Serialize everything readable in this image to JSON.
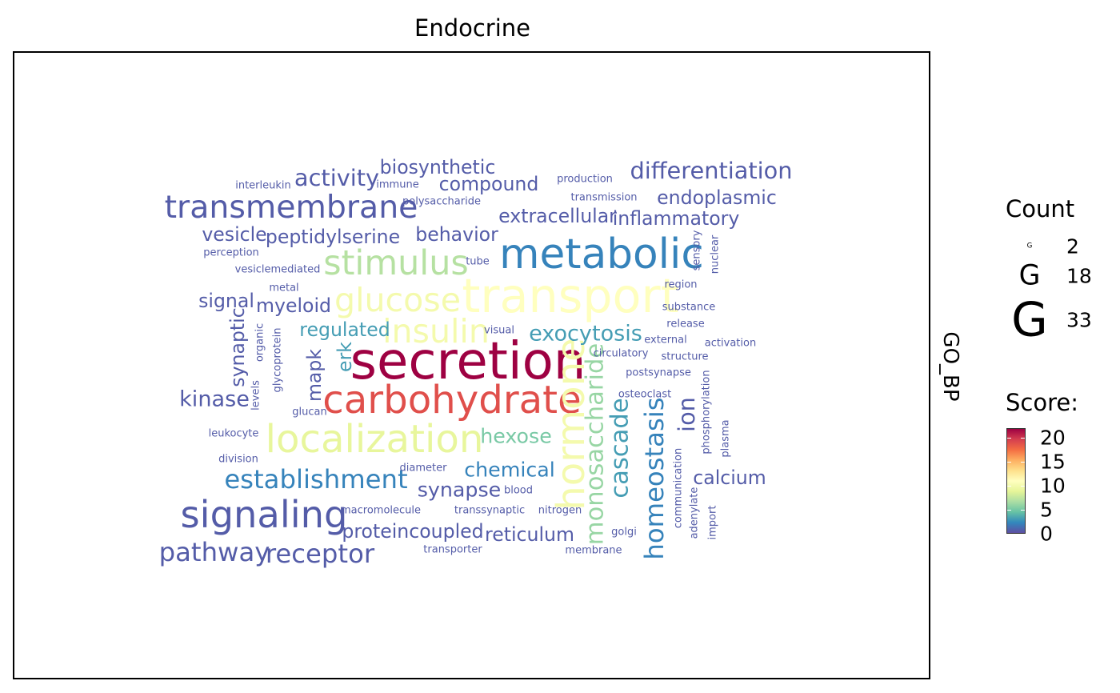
{
  "title": "Endocrine",
  "strip_label": "GO_BP",
  "legend": {
    "count_title": "Count",
    "count_glyph": "G",
    "count_keys": [
      {
        "value": 2,
        "label": "2"
      },
      {
        "value": 18,
        "label": "18"
      },
      {
        "value": 33,
        "label": "33"
      }
    ],
    "score_title": "Score:",
    "score_ticks": [
      {
        "value": 0,
        "label": "0"
      },
      {
        "value": 5,
        "label": "5"
      },
      {
        "value": 10,
        "label": "10"
      },
      {
        "value": 15,
        "label": "15"
      },
      {
        "value": 20,
        "label": "20"
      }
    ],
    "score_range": [
      0,
      22
    ],
    "palette": [
      "#5e4fa2",
      "#3288bd",
      "#66c2a5",
      "#abdda4",
      "#e6f598",
      "#ffffbf",
      "#fee08b",
      "#fdae61",
      "#f46d43",
      "#d53e4f",
      "#9e0142"
    ]
  },
  "chart_data": {
    "type": "wordcloud",
    "title": "Endocrine",
    "facet": "GO_BP",
    "size_variable": "Count",
    "color_variable": "Score",
    "words": [
      {
        "word": "secretion",
        "count": 33,
        "score": 22
      },
      {
        "word": "carbohydrate",
        "count": 24,
        "score": 19
      },
      {
        "word": "transport",
        "count": 30,
        "score": 11
      },
      {
        "word": "metabolic",
        "count": 26,
        "score": 2
      },
      {
        "word": "localization",
        "count": 24,
        "score": 9
      },
      {
        "word": "hormone",
        "count": 24,
        "score": 10
      },
      {
        "word": "signaling",
        "count": 23,
        "score": 0.5
      },
      {
        "word": "stimulus",
        "count": 21,
        "score": 7
      },
      {
        "word": "glucose",
        "count": 20,
        "score": 10
      },
      {
        "word": "insulin",
        "count": 20,
        "score": 10
      },
      {
        "word": "transmembrane",
        "count": 19,
        "score": 0.5
      },
      {
        "word": "homeostasis",
        "count": 15,
        "score": 2
      },
      {
        "word": "establishment",
        "count": 15,
        "score": 2
      },
      {
        "word": "pathway",
        "count": 15,
        "score": 0.5
      },
      {
        "word": "receptor",
        "count": 15,
        "score": 0.5
      },
      {
        "word": "monosaccharide",
        "count": 14,
        "score": 6
      },
      {
        "word": "cascade",
        "count": 14,
        "score": 3
      },
      {
        "word": "differentiation",
        "count": 13,
        "score": 0.5
      },
      {
        "word": "ion",
        "count": 13,
        "score": 0.5
      },
      {
        "word": "activity",
        "count": 13,
        "score": 0.5
      },
      {
        "word": "exocytosis",
        "count": 12,
        "score": 3
      },
      {
        "word": "kinase",
        "count": 12,
        "score": 0.5
      },
      {
        "word": "chemical",
        "count": 11,
        "score": 2
      },
      {
        "word": "hexose",
        "count": 11,
        "score": 5
      },
      {
        "word": "synapse",
        "count": 11,
        "score": 0.5
      },
      {
        "word": "biosynthetic",
        "count": 10,
        "score": 0.5
      },
      {
        "word": "compound",
        "count": 10,
        "score": 0.5
      },
      {
        "word": "endoplasmic",
        "count": 10,
        "score": 0.5
      },
      {
        "word": "extracellular",
        "count": 10,
        "score": 0.5
      },
      {
        "word": "inflammatory",
        "count": 10,
        "score": 0.5
      },
      {
        "word": "behavior",
        "count": 10,
        "score": 0.5
      },
      {
        "word": "vesicle",
        "count": 10,
        "score": 0.5
      },
      {
        "word": "peptidylserine",
        "count": 10,
        "score": 0.5
      },
      {
        "word": "regulated",
        "count": 10,
        "score": 3
      },
      {
        "word": "myeloid",
        "count": 10,
        "score": 0.5
      },
      {
        "word": "signal",
        "count": 10,
        "score": 0.5
      },
      {
        "word": "synaptic",
        "count": 10,
        "score": 0.5
      },
      {
        "word": "mapk",
        "count": 10,
        "score": 0.5
      },
      {
        "word": "erk",
        "count": 10,
        "score": 3
      },
      {
        "word": "proteincoupled",
        "count": 10,
        "score": 0.5
      },
      {
        "word": "reticulum",
        "count": 10,
        "score": 0.5
      },
      {
        "word": "calcium",
        "count": 10,
        "score": 0.5
      },
      {
        "word": "interleukin",
        "count": 4,
        "score": 0.5
      },
      {
        "word": "immune",
        "count": 4,
        "score": 0.5
      },
      {
        "word": "polysaccharide",
        "count": 4,
        "score": 0.5
      },
      {
        "word": "production",
        "count": 4,
        "score": 0.5
      },
      {
        "word": "transmission",
        "count": 4,
        "score": 0.5
      },
      {
        "word": "perception",
        "count": 4,
        "score": 0.5
      },
      {
        "word": "vesiclemediated",
        "count": 4,
        "score": 0.5
      },
      {
        "word": "tube",
        "count": 4,
        "score": 0.5
      },
      {
        "word": "metal",
        "count": 4,
        "score": 0.5
      },
      {
        "word": "region",
        "count": 4,
        "score": 0.5
      },
      {
        "word": "substance",
        "count": 4,
        "score": 0.5
      },
      {
        "word": "release",
        "count": 4,
        "score": 0.5
      },
      {
        "word": "activation",
        "count": 4,
        "score": 0.5
      },
      {
        "word": "external",
        "count": 4,
        "score": 0.5
      },
      {
        "word": "structure",
        "count": 4,
        "score": 0.5
      },
      {
        "word": "circulatory",
        "count": 4,
        "score": 0.5
      },
      {
        "word": "visual",
        "count": 4,
        "score": 0.5
      },
      {
        "word": "postsynapse",
        "count": 4,
        "score": 0.5
      },
      {
        "word": "osteoclast",
        "count": 4,
        "score": 0.5
      },
      {
        "word": "glucan",
        "count": 4,
        "score": 0.5
      },
      {
        "word": "leukocyte",
        "count": 4,
        "score": 0.5
      },
      {
        "word": "division",
        "count": 4,
        "score": 0.5
      },
      {
        "word": "diameter",
        "count": 4,
        "score": 0.5
      },
      {
        "word": "blood",
        "count": 4,
        "score": 0.5
      },
      {
        "word": "macromolecule",
        "count": 4,
        "score": 0.5
      },
      {
        "word": "transsynaptic",
        "count": 4,
        "score": 0.5
      },
      {
        "word": "nitrogen",
        "count": 4,
        "score": 0.5
      },
      {
        "word": "golgi",
        "count": 4,
        "score": 0.5
      },
      {
        "word": "transporter",
        "count": 4,
        "score": 0.5
      },
      {
        "word": "membrane",
        "count": 4,
        "score": 0.5
      },
      {
        "word": "sensory",
        "count": 4,
        "score": 0.5
      },
      {
        "word": "nuclear",
        "count": 4,
        "score": 0.5
      },
      {
        "word": "organic",
        "count": 4,
        "score": 0.5
      },
      {
        "word": "glycoprotein",
        "count": 4,
        "score": 0.5
      },
      {
        "word": "levels",
        "count": 4,
        "score": 0.5
      },
      {
        "word": "phosphorylation",
        "count": 4,
        "score": 0.5
      },
      {
        "word": "plasma",
        "count": 4,
        "score": 0.5
      },
      {
        "word": "communication",
        "count": 4,
        "score": 0.5
      },
      {
        "word": "adenylate",
        "count": 4,
        "score": 0.5
      },
      {
        "word": "import",
        "count": 4,
        "score": 0.5
      }
    ]
  }
}
